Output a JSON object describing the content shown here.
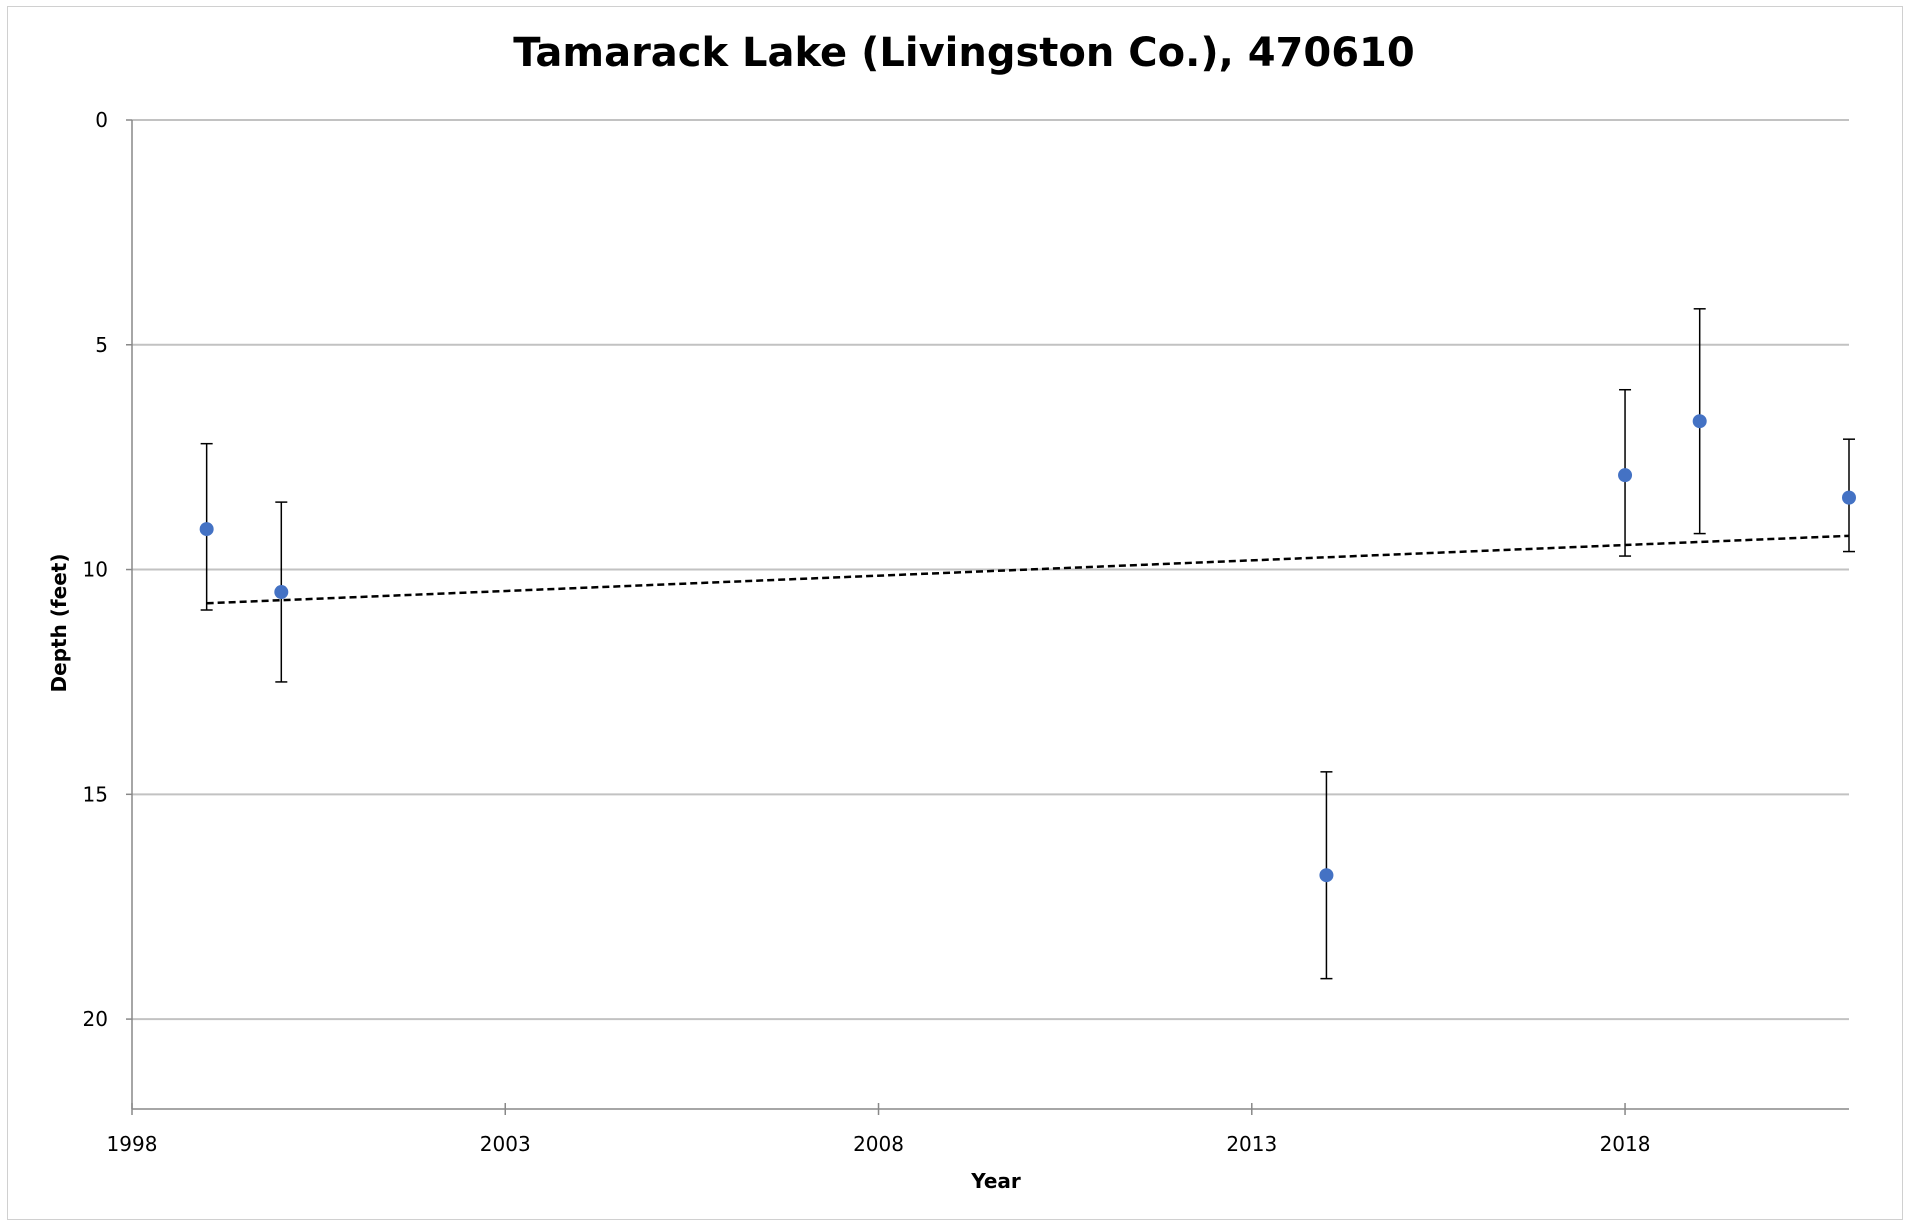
{
  "chart_data": {
    "type": "scatter",
    "title": "Tamarack Lake (Livingston Co.), 470610",
    "xlabel": "Year",
    "ylabel": "Depth (feet)",
    "xlim": [
      1998,
      2021
    ],
    "ylim": [
      0,
      22
    ],
    "y_inverted": true,
    "x_ticks": [
      1998,
      2003,
      2008,
      2013,
      2018
    ],
    "y_ticks": [
      0,
      5,
      10,
      15,
      20
    ],
    "grid": "horizontal",
    "legend": "none",
    "series": [
      {
        "x": [
          1999,
          2000,
          2014,
          2018,
          2019,
          2021
        ],
        "y": [
          9.1,
          10.5,
          16.8,
          7.9,
          6.7,
          8.4
        ],
        "error_low": [
          7.2,
          8.5,
          14.5,
          6.0,
          4.2,
          7.1
        ],
        "error_high": [
          10.9,
          12.5,
          19.1,
          9.7,
          9.2,
          9.6
        ],
        "color": "#4472C4"
      }
    ],
    "trendline": {
      "type": "linear",
      "x": [
        1999,
        2021
      ],
      "y": [
        10.75,
        9.25
      ],
      "style": "dashed",
      "color": "#000000"
    }
  }
}
